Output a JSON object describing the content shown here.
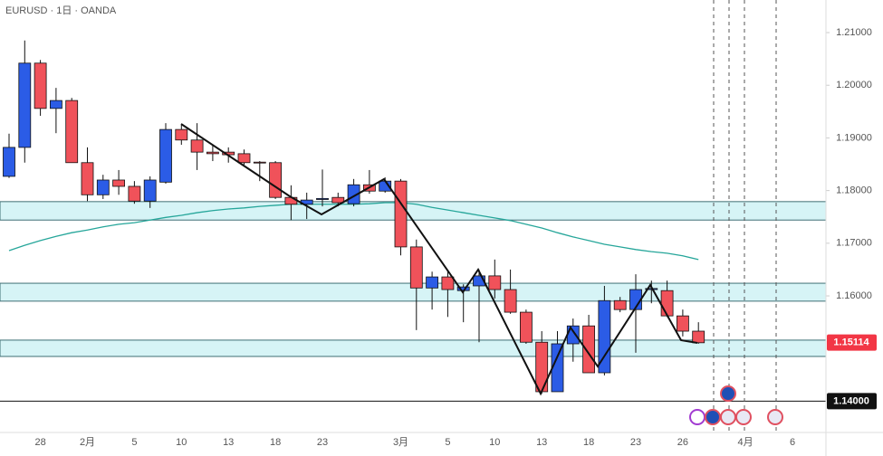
{
  "chart_data": {
    "type": "candlestick",
    "title": "EURUSD · 1日 · OANDA",
    "categories": [
      null,
      null,
      "28",
      null,
      null,
      "2月",
      null,
      null,
      "5",
      null,
      null,
      "10",
      null,
      null,
      "13",
      null,
      null,
      "18",
      null,
      null,
      "23",
      null,
      null,
      null,
      null,
      "3月",
      null,
      null,
      "5",
      null,
      null,
      "10",
      null,
      null,
      "13",
      null,
      null,
      "18",
      null,
      null,
      "23",
      null,
      null,
      "26",
      null,
      null,
      null,
      "4月",
      null,
      null,
      "6"
    ],
    "open": [
      1.1827,
      1.1882,
      1.2042,
      1.1956,
      1.1971,
      1.1853,
      1.1792,
      1.182,
      1.1808,
      1.178,
      1.1816,
      1.1916,
      1.1896,
      1.1873,
      1.1873,
      1.187,
      1.1854,
      1.1853,
      1.1787,
      1.1774,
      1.1783,
      1.1787,
      1.1775,
      1.1811,
      1.1799,
      1.1818,
      1.1693,
      1.1615,
      1.1636,
      1.161,
      1.1619,
      1.1638,
      1.1612,
      1.1569,
      1.1512,
      1.1418,
      1.1509,
      1.1543,
      1.1454,
      1.1591,
      1.1574,
      1.1612,
      1.161,
      1.1562,
      1.1533,
      null,
      null,
      null,
      null,
      null,
      null
    ],
    "high": [
      1.1908,
      1.2085,
      1.2048,
      1.1995,
      1.1976,
      1.1882,
      1.183,
      1.1839,
      1.1818,
      1.1827,
      1.1928,
      1.1925,
      1.1928,
      1.1887,
      1.1882,
      1.1878,
      1.1856,
      1.1856,
      1.181,
      1.1796,
      1.184,
      1.1796,
      1.1822,
      1.1839,
      1.1825,
      1.1822,
      1.1707,
      1.1646,
      1.1646,
      1.1622,
      1.165,
      1.1669,
      1.165,
      1.1574,
      1.1533,
      1.1533,
      1.1557,
      1.1564,
      1.1619,
      1.1598,
      1.1641,
      1.1629,
      1.1629,
      1.1574,
      1.155,
      null,
      null,
      null,
      null,
      null,
      null
    ],
    "low": [
      1.1824,
      1.1853,
      1.1942,
      1.1909,
      1.1853,
      1.178,
      1.1784,
      1.1792,
      1.1775,
      1.1767,
      1.1813,
      1.1887,
      1.1839,
      1.1856,
      1.1853,
      1.1849,
      1.1818,
      1.1784,
      1.1744,
      1.1746,
      1.177,
      1.177,
      1.177,
      1.1794,
      1.1796,
      1.1677,
      1.1535,
      1.1574,
      1.156,
      1.155,
      1.1512,
      1.1595,
      1.1566,
      1.1509,
      1.1414,
      1.1418,
      1.1475,
      1.1454,
      1.1449,
      1.1569,
      1.1492,
      1.1586,
      1.156,
      1.1523,
      1.1509,
      null,
      null,
      null,
      null,
      null,
      null
    ],
    "close": [
      1.1882,
      1.2042,
      1.1956,
      1.1971,
      1.1853,
      1.1792,
      1.182,
      1.1808,
      1.178,
      1.182,
      1.1916,
      1.1896,
      1.1873,
      1.187,
      1.1868,
      1.1853,
      1.1853,
      1.1787,
      1.1774,
      1.1782,
      1.1785,
      1.1777,
      1.1811,
      1.1799,
      1.1818,
      1.1693,
      1.1615,
      1.1636,
      1.1612,
      1.1617,
      1.1638,
      1.1612,
      1.1569,
      1.1512,
      1.1418,
      1.1509,
      1.1543,
      1.1454,
      1.1591,
      1.1574,
      1.1612,
      1.1614,
      1.1562,
      1.1533,
      1.1511,
      null,
      null,
      null,
      null,
      null,
      null
    ],
    "up_color": "#2b5ce6",
    "down_color": "#f0525a",
    "moving_average": {
      "color": "#26a69a",
      "values": [
        1.1686,
        1.1696,
        1.1705,
        1.1713,
        1.172,
        1.1725,
        1.1731,
        1.1736,
        1.1739,
        1.1744,
        1.1749,
        1.1753,
        1.1758,
        1.1762,
        1.1765,
        1.1767,
        1.177,
        1.1772,
        1.1774,
        1.1774,
        1.1774,
        1.1774,
        1.1774,
        1.1775,
        1.1777,
        1.1777,
        1.1774,
        1.1768,
        1.1763,
        1.1758,
        1.1753,
        1.1748,
        1.1743,
        1.1736,
        1.1729,
        1.172,
        1.1712,
        1.1705,
        1.1698,
        1.1693,
        1.1688,
        1.1684,
        1.1681,
        1.1676,
        1.1669,
        null,
        null,
        null,
        null,
        null,
        null
      ]
    },
    "zones": [
      [
        1.1744,
        1.1779
      ],
      [
        1.159,
        1.1624
      ],
      [
        1.1485,
        1.1516
      ]
    ],
    "zone_color": "#d6f4f6",
    "level": {
      "value": 1.14,
      "label": "1.14000"
    },
    "last_price": {
      "value": 1.15114,
      "label": "1.15114"
    },
    "ylim": [
      1.13406,
      1.21619
    ],
    "yticks": [
      {
        "value": 1.16,
        "label": "1.16000"
      },
      {
        "value": 1.17,
        "label": "1.17000"
      },
      {
        "value": 1.18,
        "label": "1.18000"
      },
      {
        "value": 1.19,
        "label": "1.19000"
      },
      {
        "value": 1.2,
        "label": "1.20000"
      },
      {
        "value": 1.21,
        "label": "1.21000"
      }
    ]
  }
}
